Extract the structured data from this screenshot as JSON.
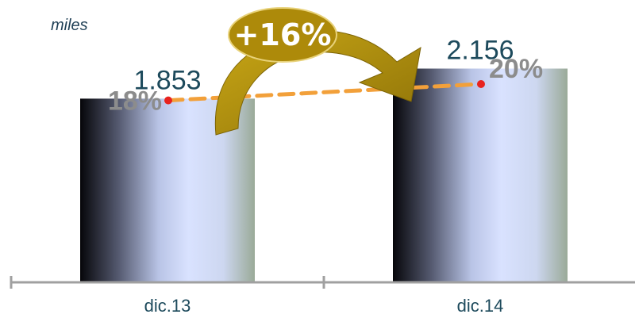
{
  "chart_data": {
    "type": "bar",
    "unit": "miles",
    "categories": [
      "dic.13",
      "dic.14"
    ],
    "values": [
      1853,
      2156
    ],
    "value_labels": [
      "1.853",
      "2.156"
    ],
    "ylim": [
      0,
      2400
    ],
    "secondary_series": {
      "style": "dashed-line",
      "values": [
        18,
        20
      ],
      "labels": [
        "18%",
        "20%"
      ],
      "ylim": [
        0,
        100
      ]
    },
    "change_annotation": "+16%",
    "legend": "none",
    "grid": false
  },
  "colors": {
    "bar_gradient": [
      "#06060a",
      "#555a70",
      "#b9c4e6",
      "#d9e2ff",
      "#cdd7f0",
      "#9aaa98"
    ],
    "axis": "#a0a0a0",
    "dashed_line": "#f2a03a",
    "point_marker": "#e8231f",
    "arrow_fill": "#b8950e",
    "oval_fill": "#ad8a0a",
    "value_text": "#1d4a5c",
    "pct_text": "#8c8c8c"
  }
}
